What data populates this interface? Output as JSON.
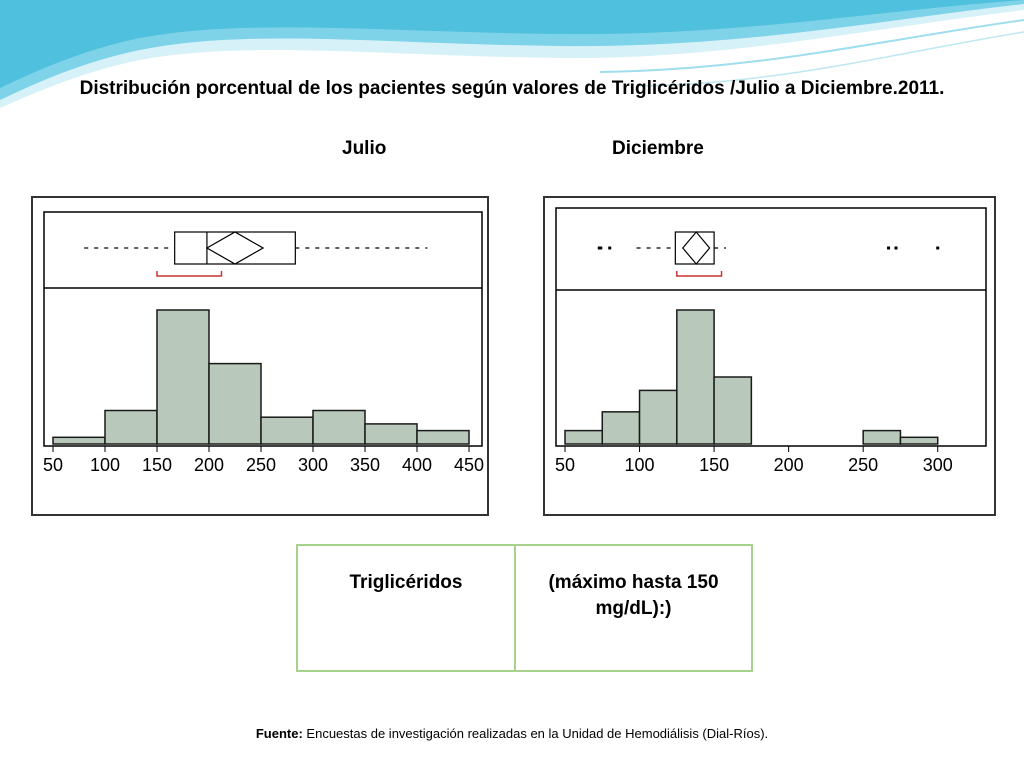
{
  "title": "Distribución porcentual de los pacientes según valores de Triglicéridos /Julio a Diciembre.2011.",
  "panel_titles": {
    "julio": "Julio",
    "diciembre": "Diciembre"
  },
  "table": {
    "col1": "Triglicéridos",
    "col2": "(máximo hasta 150 mg/dL):)"
  },
  "source": {
    "label": "Fuente:",
    "text": "Encuestas de investigación realizadas en la Unidad de Hemodiálisis (Dial-Ríos)."
  },
  "colors": {
    "bar_fill": "#b8c8bb",
    "bar_stroke": "#1a1a1a",
    "ci_bracket": "#cc3333",
    "table_border": "#a9d18e",
    "header_wave": "#5bc8e3"
  },
  "chart_data": [
    {
      "type": "histogram",
      "name": "Julio",
      "x_ticks": [
        50,
        100,
        150,
        200,
        250,
        300,
        350,
        400,
        450
      ],
      "xlim": [
        50,
        450
      ],
      "bins": [
        {
          "x0": 50,
          "x1": 100,
          "value": 1
        },
        {
          "x0": 100,
          "x1": 150,
          "value": 5
        },
        {
          "x0": 150,
          "x1": 200,
          "value": 20
        },
        {
          "x0": 200,
          "x1": 250,
          "value": 12
        },
        {
          "x0": 250,
          "x1": 300,
          "value": 4
        },
        {
          "x0": 300,
          "x1": 350,
          "value": 5
        },
        {
          "x0": 350,
          "x1": 400,
          "value": 3
        },
        {
          "x0": 400,
          "x1": 450,
          "value": 2
        }
      ],
      "boxplot": {
        "whisker_low": 80,
        "q1": 167,
        "median": 198,
        "q3": 283,
        "whisker_high": 410,
        "mean_diamond": [
          198,
          252
        ],
        "median_ci": [
          150,
          212
        ],
        "outliers": []
      }
    },
    {
      "type": "histogram",
      "name": "Diciembre",
      "x_ticks": [
        50,
        100,
        150,
        200,
        250,
        300
      ],
      "xlim": [
        50,
        325
      ],
      "bins": [
        {
          "x0": 50,
          "x1": 75,
          "value": 1
        },
        {
          "x0": 75,
          "x1": 100,
          "value": 2.4
        },
        {
          "x0": 100,
          "x1": 125,
          "value": 4
        },
        {
          "x0": 125,
          "x1": 150,
          "value": 10
        },
        {
          "x0": 150,
          "x1": 175,
          "value": 5
        },
        {
          "x0": 175,
          "x1": 200,
          "value": 0
        },
        {
          "x0": 200,
          "x1": 225,
          "value": 0
        },
        {
          "x0": 225,
          "x1": 250,
          "value": 0
        },
        {
          "x0": 250,
          "x1": 275,
          "value": 1
        },
        {
          "x0": 275,
          "x1": 300,
          "value": 0.5
        }
      ],
      "boxplot": {
        "whisker_low": 98,
        "q1": 124,
        "median": 138,
        "q3": 150,
        "whisker_high": 158,
        "mean_diamond": [
          129,
          147
        ],
        "median_ci": [
          125,
          155
        ],
        "outliers": [
          73,
          74,
          80,
          267,
          272,
          300
        ]
      }
    }
  ]
}
